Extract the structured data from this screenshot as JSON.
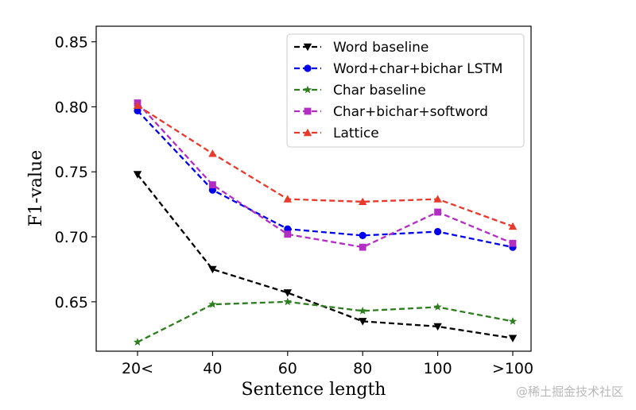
{
  "chart_data": {
    "type": "line",
    "title": "",
    "xlabel": "Sentence length",
    "ylabel": "F1-value",
    "categories": [
      "20<",
      "40",
      "60",
      "80",
      "100",
      ">100"
    ],
    "ylim": [
      0.612,
      0.862
    ],
    "yticks": [
      0.65,
      0.7,
      0.75,
      0.8,
      0.85
    ],
    "ytick_labels": [
      "0.65",
      "0.70",
      "0.75",
      "0.80",
      "0.85"
    ],
    "grid": false,
    "legend_position": "top-right",
    "series": [
      {
        "name": "Word baseline",
        "color": "#000000",
        "marker": "triangle-down",
        "values": [
          0.748,
          0.675,
          0.657,
          0.635,
          0.631,
          0.622
        ]
      },
      {
        "name": "Word+char+bichar LSTM",
        "color": "#0000ee",
        "marker": "circle",
        "values": [
          0.797,
          0.736,
          0.706,
          0.701,
          0.704,
          0.692
        ]
      },
      {
        "name": "Char baseline",
        "color": "#2e7d1e",
        "marker": "star",
        "values": [
          0.619,
          0.648,
          0.65,
          0.643,
          0.646,
          0.635
        ]
      },
      {
        "name": "Char+bichar+softword",
        "color": "#b22ec2",
        "marker": "square",
        "values": [
          0.803,
          0.74,
          0.702,
          0.692,
          0.719,
          0.695
        ]
      },
      {
        "name": "Lattice",
        "color": "#e8392a",
        "marker": "triangle-up",
        "values": [
          0.801,
          0.764,
          0.729,
          0.727,
          0.729,
          0.708
        ]
      }
    ]
  },
  "watermark": "@稀土掘金技术社区"
}
